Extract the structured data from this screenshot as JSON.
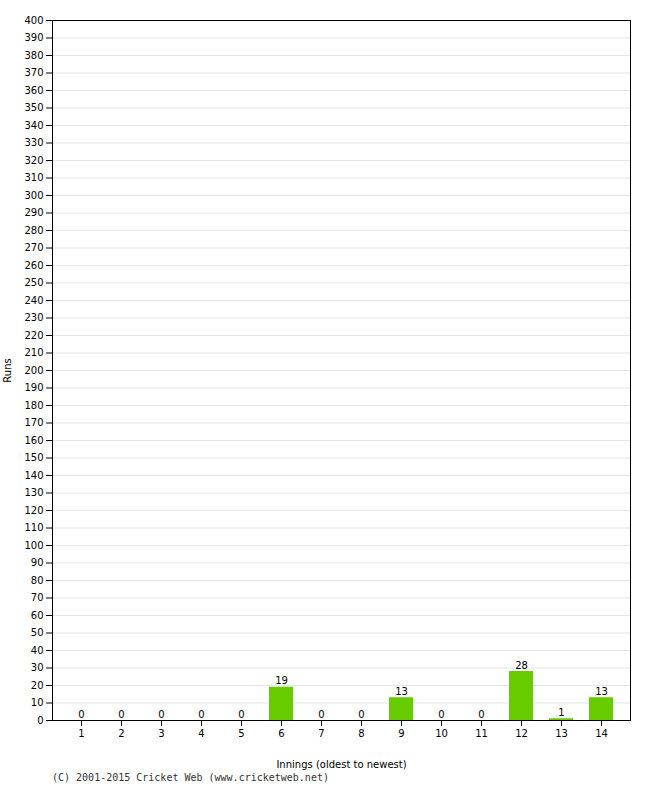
{
  "chart_data": {
    "type": "bar",
    "categories": [
      "1",
      "2",
      "3",
      "4",
      "5",
      "6",
      "7",
      "8",
      "9",
      "10",
      "11",
      "12",
      "13",
      "14"
    ],
    "values": [
      0,
      0,
      0,
      0,
      0,
      19,
      0,
      0,
      13,
      0,
      0,
      28,
      1,
      13
    ],
    "color": "#66cc00",
    "xlabel": "Innings (oldest to newest)",
    "ylabel": "Runs",
    "ylim": [
      0,
      400
    ],
    "yticks": [
      0,
      10,
      20,
      30,
      40,
      50,
      60,
      70,
      80,
      90,
      100,
      110,
      120,
      130,
      140,
      150,
      160,
      170,
      180,
      190,
      200,
      210,
      220,
      230,
      240,
      250,
      260,
      270,
      280,
      290,
      300,
      310,
      320,
      330,
      340,
      350,
      360,
      370,
      380,
      390,
      400
    ],
    "grid": true,
    "data_labels": true,
    "footer": "(C) 2001-2015 Cricket Web (www.cricketweb.net)"
  }
}
